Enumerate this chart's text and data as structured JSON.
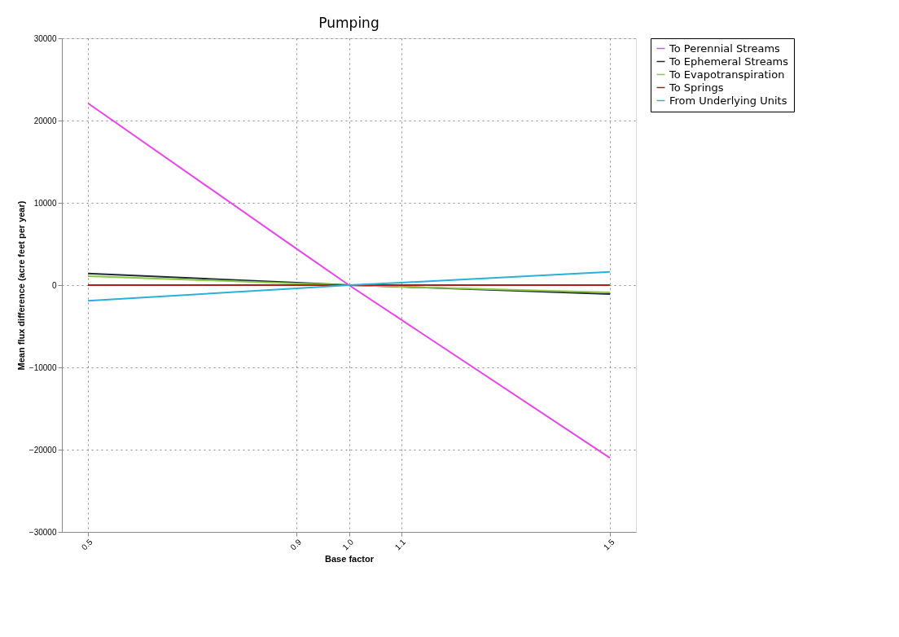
{
  "chart_data": {
    "type": "line",
    "title": "Pumping",
    "xlabel": "Base factor",
    "ylabel": "Mean flux difference (acre feet per year)",
    "x": [
      0.5,
      0.9,
      1.0,
      1.1,
      1.5
    ],
    "xlim": [
      0.45,
      1.55
    ],
    "xticks": [
      0.5,
      0.9,
      {
        "value": 1.0,
        "label": "1.0"
      },
      1.1,
      1.5
    ],
    "ylim": [
      -30000,
      30000
    ],
    "yticks": [
      -30000,
      -20000,
      -10000,
      0,
      10000,
      20000,
      30000
    ],
    "grid": true,
    "legend": "top right",
    "marker": "none",
    "line_style": "solid",
    "series": [
      {
        "name": "To Perennial Streams",
        "color": "#e845e8",
        "values": [
          22100,
          4400,
          0,
          -4200,
          -21000
        ]
      },
      {
        "name": "To Ephemeral Streams",
        "color": "#1c2b3a",
        "values": [
          1400,
          300,
          0,
          -200,
          -1100
        ]
      },
      {
        "name": "To Evapotranspiration",
        "color": "#8dc63f",
        "values": [
          1100,
          200,
          0,
          -200,
          -900
        ]
      },
      {
        "name": "To Springs",
        "color": "#b01c1c",
        "values": [
          0,
          0,
          0,
          0,
          0
        ]
      },
      {
        "name": "From Underlying Units",
        "color": "#2bb0d8",
        "values": [
          -1900,
          -400,
          0,
          300,
          1600
        ]
      }
    ]
  }
}
